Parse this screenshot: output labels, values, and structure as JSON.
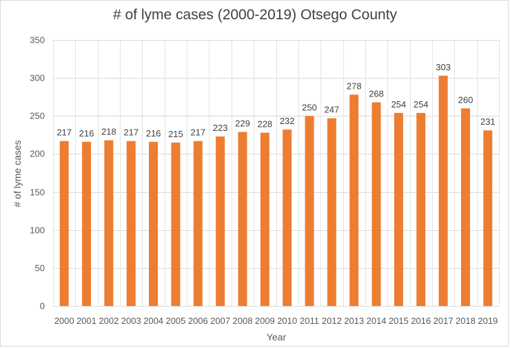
{
  "chart_data": {
    "type": "bar",
    "title": "# of lyme cases (2000-2019) Otsego County",
    "xlabel": "Year",
    "ylabel": "# of lyme cases",
    "categories": [
      "2000",
      "2001",
      "2002",
      "2003",
      "2004",
      "2005",
      "2006",
      "2007",
      "2008",
      "2009",
      "2010",
      "2011",
      "2012",
      "2013",
      "2014",
      "2015",
      "2016",
      "2017",
      "2018",
      "2019"
    ],
    "values": [
      217,
      216,
      218,
      217,
      216,
      215,
      217,
      223,
      229,
      228,
      232,
      250,
      247,
      278,
      268,
      254,
      254,
      303,
      260,
      231
    ],
    "ylim": [
      0,
      350
    ],
    "yticks": [
      0,
      50,
      100,
      150,
      200,
      250,
      300,
      350
    ],
    "grid": true,
    "legend": "none",
    "data_labels": true,
    "bar_color": "#ed7d31"
  }
}
